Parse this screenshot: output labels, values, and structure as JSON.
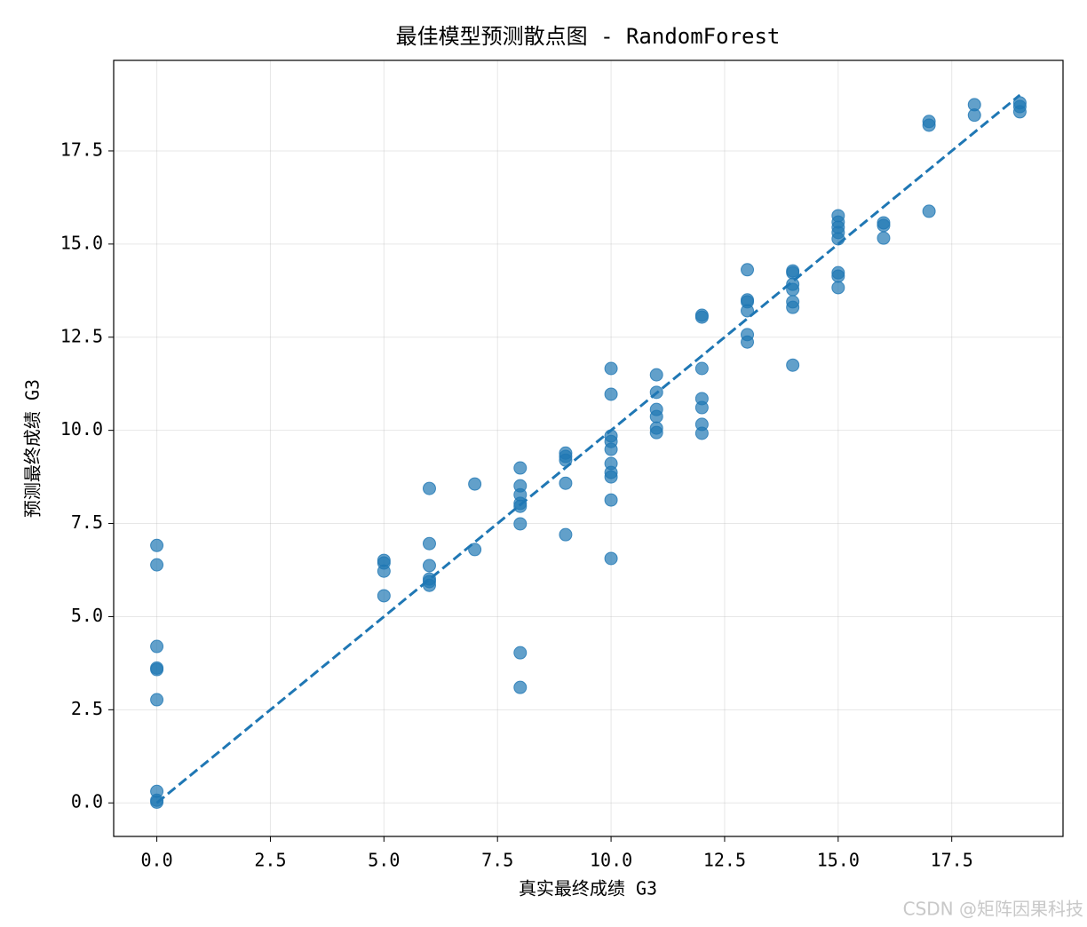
{
  "chart_data": {
    "type": "scatter",
    "title": "最佳模型预测散点图 - RandomForest",
    "x_label": "真实最终成绩 G3",
    "y_label": "预测最终成绩 G3",
    "watermark": "CSDN @矩阵因果科技",
    "color": "#1f77b4",
    "grid": true,
    "xlim": [
      -0.95,
      19.95
    ],
    "ylim": [
      -0.9,
      19.93
    ],
    "xticks": [
      {
        "value": 0,
        "label": "0.0"
      },
      {
        "value": 2.5,
        "label": "2.5"
      },
      {
        "value": 5,
        "label": "5.0"
      },
      {
        "value": 7.5,
        "label": "7.5"
      },
      {
        "value": 10,
        "label": "10.0"
      },
      {
        "value": 12.5,
        "label": "12.5"
      },
      {
        "value": 15,
        "label": "15.0"
      },
      {
        "value": 17.5,
        "label": "17.5"
      }
    ],
    "yticks": [
      {
        "value": 0,
        "label": "0.0"
      },
      {
        "value": 2.5,
        "label": "2.5"
      },
      {
        "value": 5,
        "label": "5.0"
      },
      {
        "value": 7.5,
        "label": "7.5"
      },
      {
        "value": 10,
        "label": "10.0"
      },
      {
        "value": 12.5,
        "label": "12.5"
      },
      {
        "value": 15,
        "label": "15.0"
      },
      {
        "value": 17.5,
        "label": "17.5"
      }
    ],
    "reference_line": {
      "x": [
        0,
        19
      ],
      "y": [
        0,
        19
      ]
    },
    "x": [
      0,
      0,
      0,
      0,
      0,
      0,
      0,
      0,
      0,
      5,
      5,
      5,
      5,
      6,
      6,
      6,
      6,
      6,
      6,
      7,
      7,
      8,
      8,
      8,
      8,
      8,
      8,
      8,
      8,
      9,
      9,
      9,
      9,
      9,
      10,
      10,
      10,
      10,
      10,
      10,
      10,
      10,
      10,
      10,
      11,
      11,
      11,
      11,
      11,
      11,
      12,
      12,
      12,
      12,
      12,
      12,
      12,
      13,
      13,
      13,
      13,
      13,
      13,
      14,
      14,
      14,
      14,
      14,
      14,
      14,
      15,
      15,
      15,
      15,
      15,
      15,
      15,
      15,
      16,
      16,
      16,
      17,
      17,
      17,
      18,
      18,
      19,
      19,
      19
    ],
    "values": [
      6.91,
      6.39,
      4.2,
      3.62,
      3.58,
      2.77,
      0.31,
      0.07,
      0.02,
      6.51,
      6.44,
      6.22,
      5.56,
      8.44,
      6.96,
      6.37,
      6.01,
      5.94,
      5.84,
      8.56,
      6.8,
      8.99,
      8.51,
      8.27,
      8.04,
      7.96,
      7.49,
      4.03,
      3.1,
      9.39,
      9.3,
      9.2,
      8.58,
      7.2,
      11.66,
      10.97,
      9.85,
      9.7,
      9.49,
      9.11,
      8.87,
      8.75,
      8.13,
      6.56,
      11.49,
      11.02,
      10.56,
      10.37,
      10.06,
      9.94,
      13.09,
      13.04,
      11.66,
      10.85,
      10.61,
      10.16,
      9.92,
      14.31,
      13.5,
      13.45,
      13.21,
      12.57,
      12.37,
      14.28,
      14.23,
      13.92,
      13.78,
      13.45,
      13.3,
      11.75,
      15.76,
      15.59,
      15.45,
      15.31,
      15.14,
      14.23,
      14.14,
      13.83,
      15.57,
      15.5,
      15.16,
      18.29,
      18.19,
      15.88,
      18.74,
      18.46,
      18.79,
      18.69,
      18.55
    ]
  }
}
